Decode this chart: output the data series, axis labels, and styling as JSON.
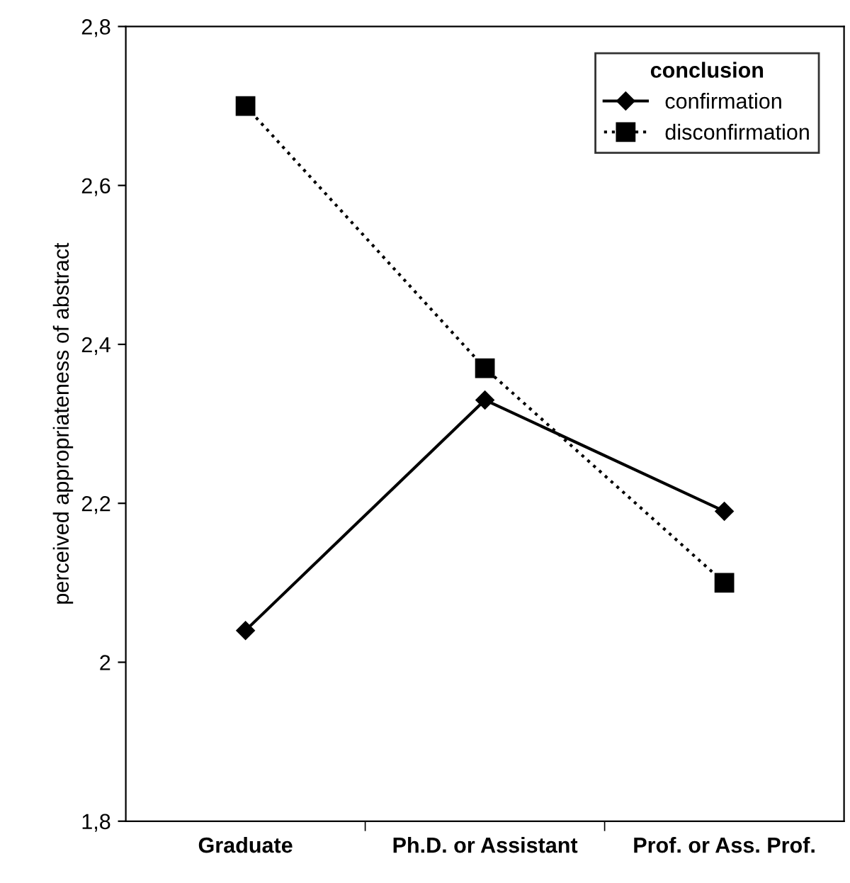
{
  "chart_data": {
    "type": "line",
    "ylabel": "perceived appropriateness of abstract",
    "legend_title": "conclusion",
    "categories": [
      "Graduate",
      "Ph.D. or Assistant",
      "Prof. or Ass. Prof."
    ],
    "series": [
      {
        "name": "confirmation",
        "color": "#000000",
        "values": [
          2.04,
          2.33,
          2.19
        ],
        "marker": "diamond",
        "line_style": "solid"
      },
      {
        "name": "disconfirmation",
        "color": "#000000",
        "values": [
          2.7,
          2.37,
          2.1
        ],
        "marker": "square",
        "line_style": "dotted"
      }
    ],
    "ylim": [
      1.8,
      2.8
    ],
    "yticks": [
      {
        "value": 1.8,
        "label": "1,8"
      },
      {
        "value": 2.0,
        "label": "2"
      },
      {
        "value": 2.2,
        "label": "2,2"
      },
      {
        "value": 2.4,
        "label": "2,4"
      },
      {
        "value": 2.6,
        "label": "2,6"
      },
      {
        "value": 2.8,
        "label": "2,8"
      }
    ],
    "grid": false,
    "legend": "top right"
  }
}
